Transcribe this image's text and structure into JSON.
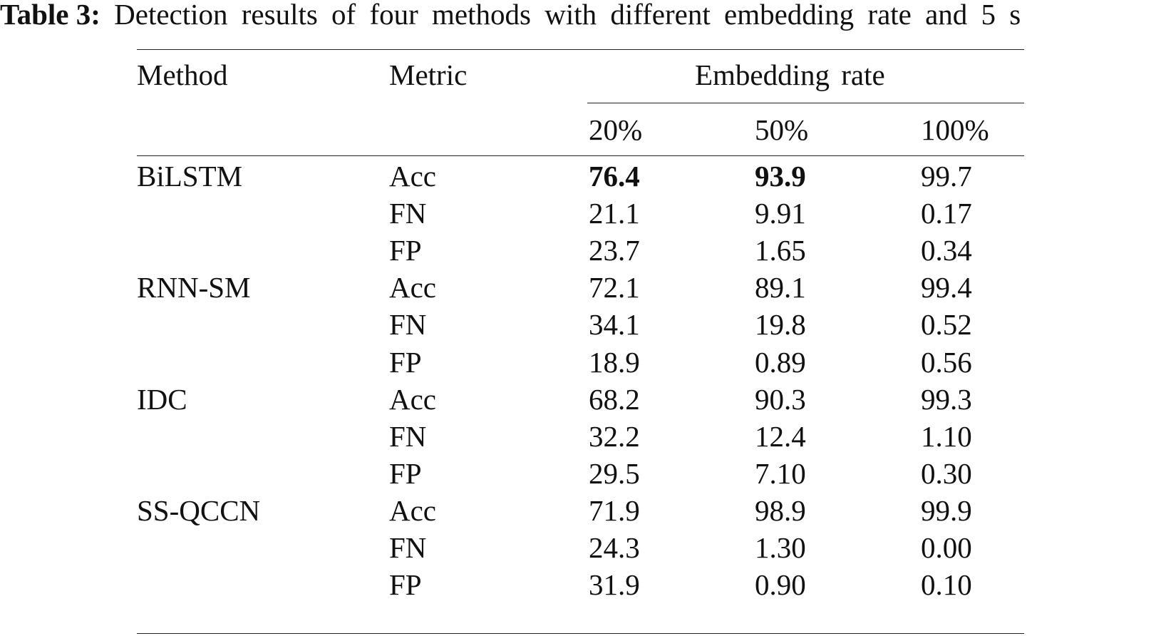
{
  "caption": {
    "label": "Table 3:",
    "text": "Detection results of four methods with different embedding rate and 5 s"
  },
  "table": {
    "headers": {
      "method": "Method",
      "metric": "Metric",
      "group": "Embedding rate",
      "rates": [
        "20%",
        "50%",
        "100%"
      ]
    },
    "groups": [
      {
        "method": "BiLSTM",
        "rows": [
          {
            "metric": "Acc",
            "values": [
              "76.4",
              "93.9",
              "99.7"
            ],
            "bold": [
              true,
              true,
              false
            ]
          },
          {
            "metric": "FN",
            "values": [
              "21.1",
              "9.91",
              "0.17"
            ],
            "bold": [
              false,
              false,
              false
            ]
          },
          {
            "metric": "FP",
            "values": [
              "23.7",
              "1.65",
              "0.34"
            ],
            "bold": [
              false,
              false,
              false
            ]
          }
        ]
      },
      {
        "method": "RNN-SM",
        "rows": [
          {
            "metric": "Acc",
            "values": [
              "72.1",
              "89.1",
              "99.4"
            ],
            "bold": [
              false,
              false,
              false
            ]
          },
          {
            "metric": "FN",
            "values": [
              "34.1",
              "19.8",
              "0.52"
            ],
            "bold": [
              false,
              false,
              false
            ]
          },
          {
            "metric": "FP",
            "values": [
              "18.9",
              "0.89",
              "0.56"
            ],
            "bold": [
              false,
              false,
              false
            ]
          }
        ]
      },
      {
        "method": "IDC",
        "rows": [
          {
            "metric": "Acc",
            "values": [
              "68.2",
              "90.3",
              "99.3"
            ],
            "bold": [
              false,
              false,
              false
            ]
          },
          {
            "metric": "FN",
            "values": [
              "32.2",
              "12.4",
              "1.10"
            ],
            "bold": [
              false,
              false,
              false
            ]
          },
          {
            "metric": "FP",
            "values": [
              "29.5",
              "7.10",
              "0.30"
            ],
            "bold": [
              false,
              false,
              false
            ]
          }
        ]
      },
      {
        "method": "SS-QCCN",
        "rows": [
          {
            "metric": "Acc",
            "values": [
              "71.9",
              "98.9",
              "99.9"
            ],
            "bold": [
              false,
              false,
              false
            ]
          },
          {
            "metric": "FN",
            "values": [
              "24.3",
              "1.30",
              "0.00"
            ],
            "bold": [
              false,
              false,
              false
            ]
          },
          {
            "metric": "FP",
            "values": [
              "31.9",
              "0.90",
              "0.10"
            ],
            "bold": [
              false,
              false,
              false
            ]
          }
        ]
      }
    ]
  }
}
